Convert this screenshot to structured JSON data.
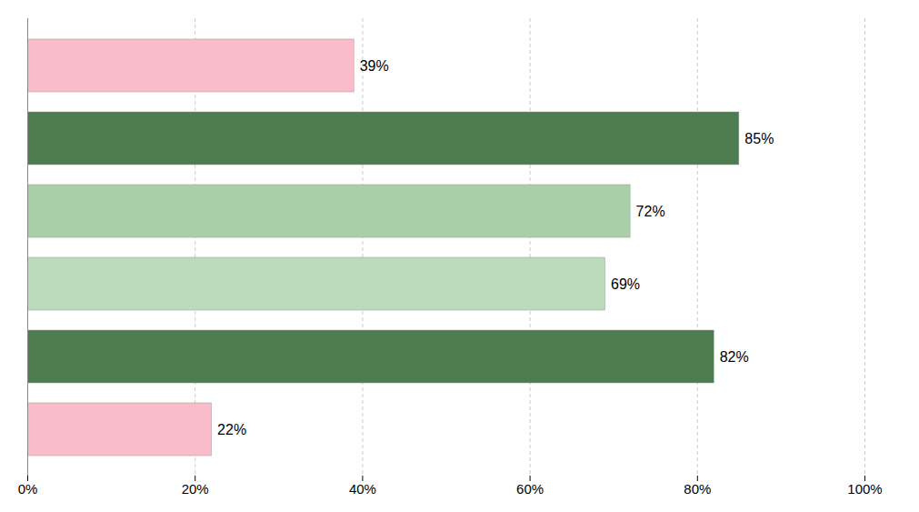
{
  "chart_data": {
    "type": "bar",
    "orientation": "horizontal",
    "categories": [
      null,
      null,
      null,
      null,
      null,
      null
    ],
    "values": [
      0.39,
      0.85,
      0.72,
      0.69,
      0.82,
      0.22
    ],
    "value_labels": [
      "39%",
      "85%",
      "72%",
      "69%",
      "82%",
      "22%"
    ],
    "data_labels": true,
    "colors": [
      "#f9bcc8",
      "#4d7c50",
      "#a8cfa8",
      "#bcdabc",
      "#4d7c50",
      "#f9bcc8"
    ],
    "xlim": [
      0,
      1.0
    ],
    "xticks": [
      {
        "value": 0,
        "label": "0%"
      },
      {
        "value": 0.2,
        "label": "20%"
      },
      {
        "value": 0.4,
        "label": "40%"
      },
      {
        "value": 0.6,
        "label": "60%"
      },
      {
        "value": 0.8,
        "label": "80%"
      },
      {
        "value": 1.0,
        "label": "100%"
      }
    ],
    "grid": true,
    "tick_labels": "x"
  }
}
